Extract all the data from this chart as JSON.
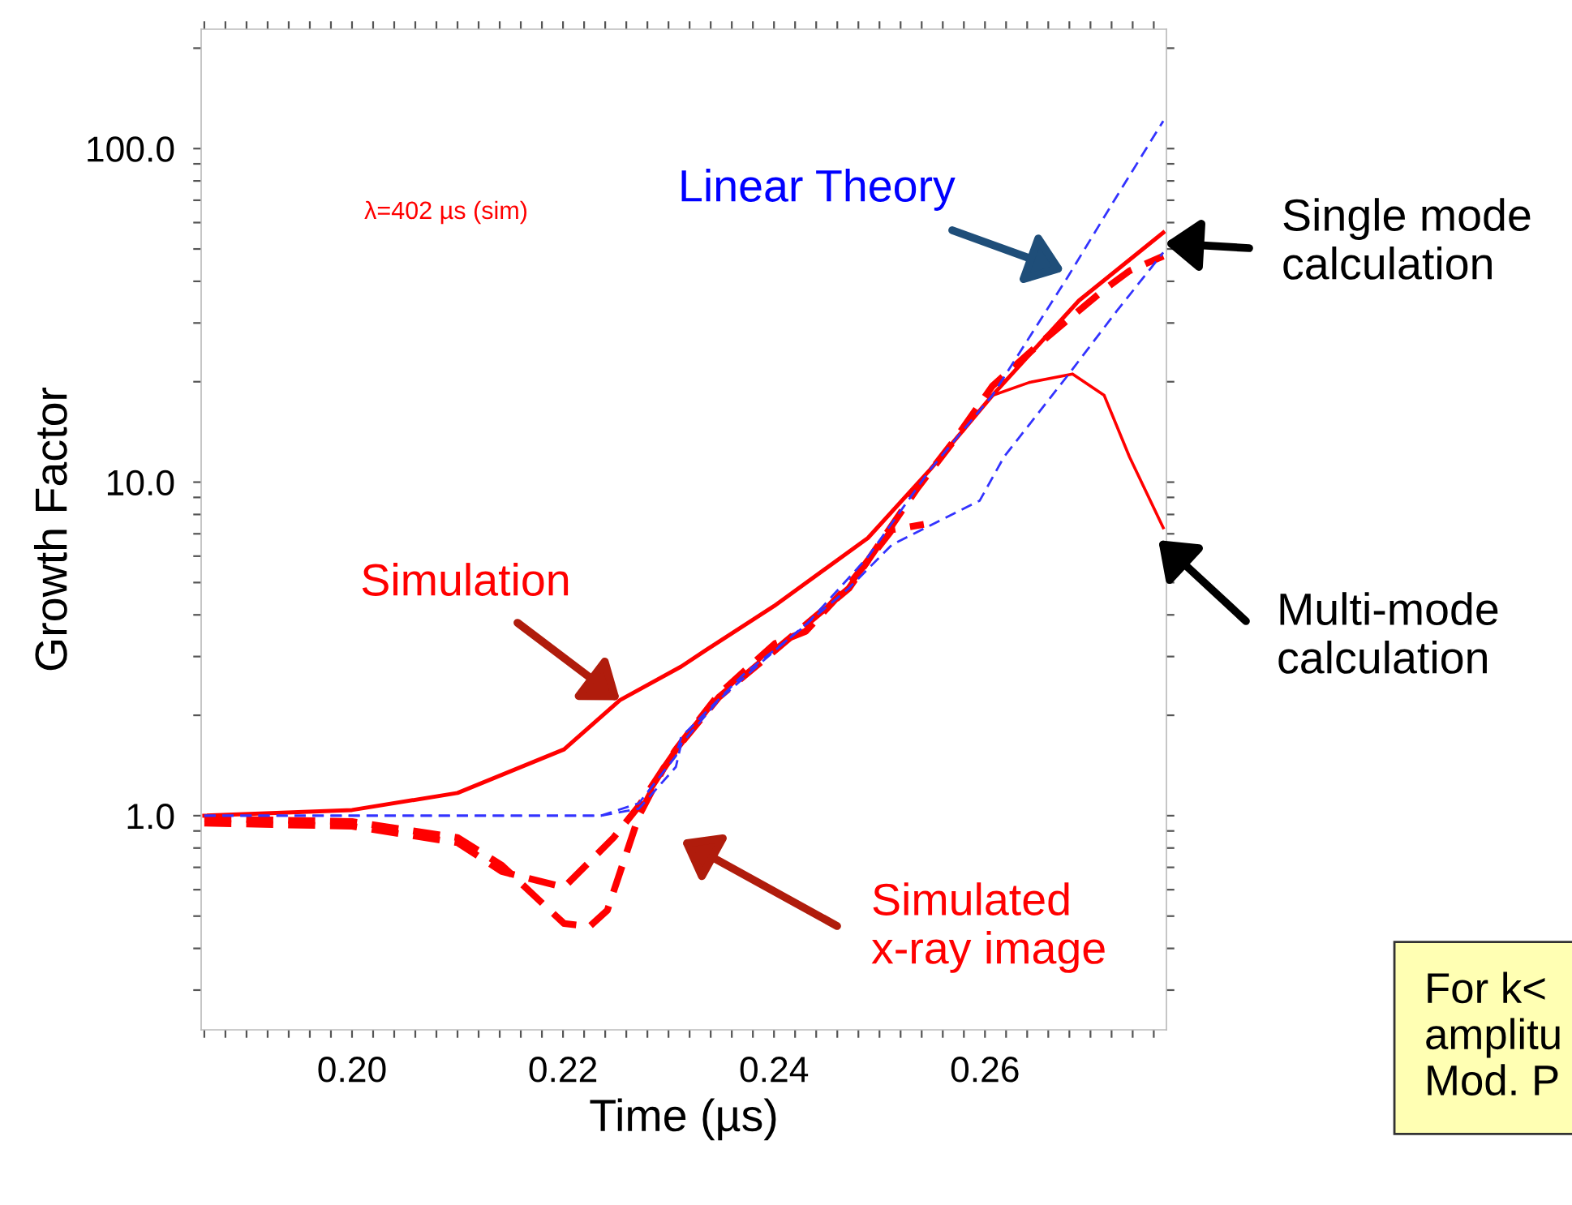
{
  "chart_data": {
    "type": "line",
    "xlabel": "Time (µs)",
    "ylabel": "Growth Factor",
    "log": "y",
    "xlim": [
      0.1857,
      0.2772
    ],
    "ylim": [
      0.228,
      228
    ],
    "xticks": [
      {
        "value": 0.186,
        "label": null
      },
      {
        "value": 0.188,
        "label": null
      },
      {
        "value": 0.19,
        "label": null
      },
      {
        "value": 0.192,
        "label": null
      },
      {
        "value": 0.194,
        "label": null
      },
      {
        "value": 0.196,
        "label": null
      },
      {
        "value": 0.198,
        "label": null
      },
      {
        "value": 0.2,
        "label": "0.20"
      },
      {
        "value": 0.202,
        "label": null
      },
      {
        "value": 0.204,
        "label": null
      },
      {
        "value": 0.206,
        "label": null
      },
      {
        "value": 0.208,
        "label": null
      },
      {
        "value": 0.21,
        "label": null
      },
      {
        "value": 0.212,
        "label": null
      },
      {
        "value": 0.214,
        "label": null
      },
      {
        "value": 0.216,
        "label": null
      },
      {
        "value": 0.218,
        "label": null
      },
      {
        "value": 0.22,
        "label": "0.22"
      },
      {
        "value": 0.222,
        "label": null
      },
      {
        "value": 0.224,
        "label": null
      },
      {
        "value": 0.226,
        "label": null
      },
      {
        "value": 0.228,
        "label": null
      },
      {
        "value": 0.23,
        "label": null
      },
      {
        "value": 0.232,
        "label": null
      },
      {
        "value": 0.234,
        "label": null
      },
      {
        "value": 0.236,
        "label": null
      },
      {
        "value": 0.238,
        "label": null
      },
      {
        "value": 0.24,
        "label": "0.24"
      },
      {
        "value": 0.242,
        "label": null
      },
      {
        "value": 0.244,
        "label": null
      },
      {
        "value": 0.246,
        "label": null
      },
      {
        "value": 0.248,
        "label": null
      },
      {
        "value": 0.25,
        "label": null
      },
      {
        "value": 0.252,
        "label": null
      },
      {
        "value": 0.254,
        "label": null
      },
      {
        "value": 0.256,
        "label": null
      },
      {
        "value": 0.258,
        "label": null
      },
      {
        "value": 0.26,
        "label": "0.26"
      },
      {
        "value": 0.262,
        "label": null
      },
      {
        "value": 0.264,
        "label": null
      },
      {
        "value": 0.266,
        "label": null
      },
      {
        "value": 0.268,
        "label": null
      },
      {
        "value": 0.27,
        "label": null
      },
      {
        "value": 0.272,
        "label": null
      },
      {
        "value": 0.274,
        "label": null
      },
      {
        "value": 0.276,
        "label": null
      }
    ],
    "yticks": [
      {
        "value": 0.3,
        "label": null
      },
      {
        "value": 0.4,
        "label": null
      },
      {
        "value": 0.5,
        "label": null
      },
      {
        "value": 0.6,
        "label": null
      },
      {
        "value": 0.7,
        "label": null
      },
      {
        "value": 0.8,
        "label": null
      },
      {
        "value": 0.9,
        "label": null
      },
      {
        "value": 1,
        "label": "1.0"
      },
      {
        "value": 2,
        "label": null
      },
      {
        "value": 3,
        "label": null
      },
      {
        "value": 4,
        "label": null
      },
      {
        "value": 5,
        "label": null
      },
      {
        "value": 6,
        "label": null
      },
      {
        "value": 7,
        "label": null
      },
      {
        "value": 8,
        "label": null
      },
      {
        "value": 9,
        "label": null
      },
      {
        "value": 10,
        "label": "10.0"
      },
      {
        "value": 20,
        "label": null
      },
      {
        "value": 30,
        "label": null
      },
      {
        "value": 40,
        "label": null
      },
      {
        "value": 50,
        "label": null
      },
      {
        "value": 60,
        "label": null
      },
      {
        "value": 70,
        "label": null
      },
      {
        "value": 80,
        "label": null
      },
      {
        "value": 90,
        "label": null
      },
      {
        "value": 100,
        "label": "100.0"
      },
      {
        "value": 200,
        "label": null
      }
    ],
    "grid": false,
    "series": [
      {
        "color": "#ff0000",
        "line_style": "solid",
        "x": [
          0.186,
          0.2,
          0.21,
          0.2201,
          0.2254,
          0.2312,
          0.2335,
          0.24,
          0.2489,
          0.2548,
          0.2607,
          0.2689,
          0.2769
        ],
        "values": [
          1.0,
          1.04,
          1.17,
          1.58,
          2.22,
          2.8,
          3.13,
          4.25,
          6.8,
          10.9,
          18.2,
          35,
          56
        ]
      },
      {
        "color": "#ff0000",
        "line_style": "solid",
        "x": [
          0.2607,
          0.2642,
          0.2683,
          0.2713,
          0.2737,
          0.2769
        ],
        "values": [
          18.2,
          19.9,
          21.1,
          18.2,
          11.9,
          7.3
        ]
      },
      {
        "color": "#ff0000",
        "line_style": "dashed",
        "x": [
          0.186,
          0.2,
          0.21,
          0.2142,
          0.2201,
          0.2248,
          0.2272,
          0.2307,
          0.2348,
          0.2401,
          0.243,
          0.2471,
          0.2512,
          0.2542
        ],
        "values": [
          0.95,
          0.93,
          0.83,
          0.68,
          0.61,
          0.86,
          1.07,
          1.58,
          2.32,
          3.28,
          3.57,
          4.92,
          7.2,
          7.47
        ]
      },
      {
        "color": "#ff0000",
        "line_style": "dashed",
        "x": [
          0.186,
          0.2,
          0.21,
          0.2142,
          0.2201,
          0.2225,
          0.2242,
          0.2272,
          0.2295,
          0.2312,
          0.2348,
          0.2401,
          0.2471,
          0.2536,
          0.2572,
          0.2607,
          0.2654,
          0.2713,
          0.2737,
          0.2769
        ],
        "values": [
          0.98,
          0.96,
          0.86,
          0.71,
          0.475,
          0.465,
          0.52,
          1.0,
          1.38,
          1.65,
          2.27,
          3.13,
          4.8,
          9.6,
          13.5,
          19.4,
          26.4,
          37.8,
          43,
          47.6
        ]
      },
      {
        "color": "#3333ff",
        "line_style": "dashed",
        "x": [
          0.186,
          0.2236,
          0.2272,
          0.2307,
          0.2312,
          0.2371,
          0.243,
          0.2489,
          0.2548,
          0.2607,
          0.2678,
          0.2725,
          0.2769
        ],
        "values": [
          1.0,
          1.0,
          1.09,
          1.51,
          1.72,
          2.65,
          3.72,
          5.97,
          10.9,
          18.2,
          41,
          72,
          121
        ]
      },
      {
        "color": "#3333ff",
        "line_style": "dashed",
        "x": [
          0.186,
          0.2236,
          0.2272,
          0.2307,
          0.2312,
          0.2348,
          0.2401,
          0.2471,
          0.2512,
          0.2595,
          0.2618,
          0.2678,
          0.2725,
          0.2769
        ],
        "values": [
          1.0,
          1.0,
          1.05,
          1.4,
          1.64,
          2.23,
          3.13,
          4.81,
          6.5,
          8.8,
          11.9,
          20.8,
          32.6,
          48.8
        ]
      }
    ],
    "annotations": [
      "λ=402 µs (sim)",
      "Linear Theory",
      {
        "text": "Simulation",
        "x": 0.2254,
        "y": 2.22
      },
      "Simulated\nx-ray image",
      "Single mode\ncalculation",
      "Multi-mode\ncalculation",
      "For k<\namplitu\nMod. P"
    ]
  }
}
